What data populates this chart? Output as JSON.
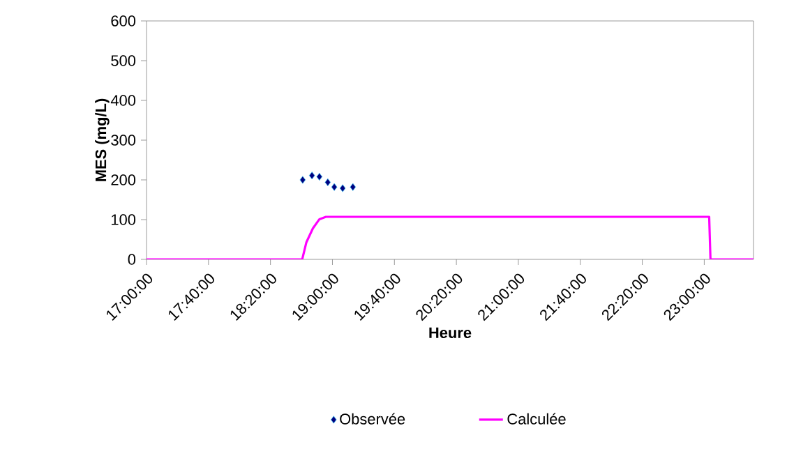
{
  "chart_data": {
    "type": "line",
    "xlabel": "Heure",
    "ylabel": "MES (mg/L)",
    "xlim": [
      17,
      23.53
    ],
    "ylim": [
      0,
      600
    ],
    "xticks": [
      {
        "value": 17,
        "label": "17:00:00"
      },
      {
        "value": 17.6666667,
        "label": "17:40:00"
      },
      {
        "value": 18.3333333,
        "label": "18:20:00"
      },
      {
        "value": 19,
        "label": "19:00:00"
      },
      {
        "value": 19.6666667,
        "label": "19:40:00"
      },
      {
        "value": 20.3333333,
        "label": "20:20:00"
      },
      {
        "value": 21,
        "label": "21:00:00"
      },
      {
        "value": 21.6666667,
        "label": "21:40:00"
      },
      {
        "value": 22.3333333,
        "label": "22:20:00"
      },
      {
        "value": 23,
        "label": "23:00:00"
      }
    ],
    "yticks": [
      0,
      100,
      200,
      300,
      400,
      500,
      600
    ],
    "grid": false,
    "legend": "bottom",
    "series": [
      {
        "name": "Observée",
        "type": "scatter",
        "marker": "diamond",
        "color": "#000080",
        "x": [
          18.68,
          18.78,
          18.86,
          18.95,
          19.02,
          19.11,
          19.22
        ],
        "values": [
          200,
          211,
          208,
          194,
          182,
          179,
          182
        ]
      },
      {
        "name": "Calculée",
        "marker": "none",
        "color": "#ff00ff",
        "x": [
          17,
          18.675,
          18.72,
          18.79,
          18.86,
          18.93,
          23.053,
          23.067,
          23.53
        ],
        "values": [
          0,
          0,
          43,
          78,
          101,
          107,
          107,
          0,
          0
        ]
      }
    ]
  }
}
